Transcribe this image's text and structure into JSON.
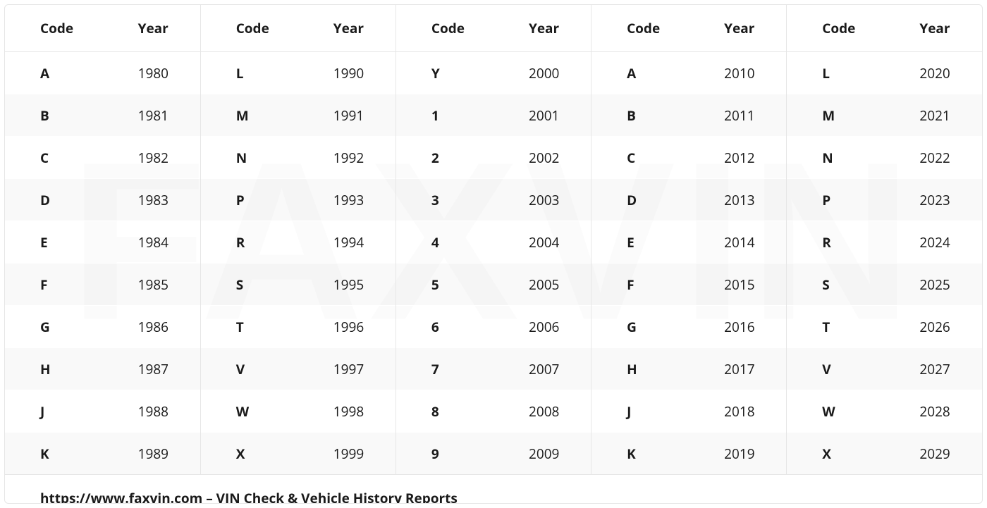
{
  "table": {
    "headers": {
      "code": "Code",
      "year": "Year"
    },
    "groups": [
      {
        "rows": [
          {
            "code": "A",
            "year": "1980"
          },
          {
            "code": "B",
            "year": "1981"
          },
          {
            "code": "C",
            "year": "1982"
          },
          {
            "code": "D",
            "year": "1983"
          },
          {
            "code": "E",
            "year": "1984"
          },
          {
            "code": "F",
            "year": "1985"
          },
          {
            "code": "G",
            "year": "1986"
          },
          {
            "code": "H",
            "year": "1987"
          },
          {
            "code": "J",
            "year": "1988"
          },
          {
            "code": "K",
            "year": "1989"
          }
        ]
      },
      {
        "rows": [
          {
            "code": "L",
            "year": "1990"
          },
          {
            "code": "M",
            "year": "1991"
          },
          {
            "code": "N",
            "year": "1992"
          },
          {
            "code": "P",
            "year": "1993"
          },
          {
            "code": "R",
            "year": "1994"
          },
          {
            "code": "S",
            "year": "1995"
          },
          {
            "code": "T",
            "year": "1996"
          },
          {
            "code": "V",
            "year": "1997"
          },
          {
            "code": "W",
            "year": "1998"
          },
          {
            "code": "X",
            "year": "1999"
          }
        ]
      },
      {
        "rows": [
          {
            "code": "Y",
            "year": "2000"
          },
          {
            "code": "1",
            "year": "2001"
          },
          {
            "code": "2",
            "year": "2002"
          },
          {
            "code": "3",
            "year": "2003"
          },
          {
            "code": "4",
            "year": "2004"
          },
          {
            "code": "5",
            "year": "2005"
          },
          {
            "code": "6",
            "year": "2006"
          },
          {
            "code": "7",
            "year": "2007"
          },
          {
            "code": "8",
            "year": "2008"
          },
          {
            "code": "9",
            "year": "2009"
          }
        ]
      },
      {
        "rows": [
          {
            "code": "A",
            "year": "2010"
          },
          {
            "code": "B",
            "year": "2011"
          },
          {
            "code": "C",
            "year": "2012"
          },
          {
            "code": "D",
            "year": "2013"
          },
          {
            "code": "E",
            "year": "2014"
          },
          {
            "code": "F",
            "year": "2015"
          },
          {
            "code": "G",
            "year": "2016"
          },
          {
            "code": "H",
            "year": "2017"
          },
          {
            "code": "J",
            "year": "2018"
          },
          {
            "code": "K",
            "year": "2019"
          }
        ]
      },
      {
        "rows": [
          {
            "code": "L",
            "year": "2020"
          },
          {
            "code": "M",
            "year": "2021"
          },
          {
            "code": "N",
            "year": "2022"
          },
          {
            "code": "P",
            "year": "2023"
          },
          {
            "code": "R",
            "year": "2024"
          },
          {
            "code": "S",
            "year": "2025"
          },
          {
            "code": "T",
            "year": "2026"
          },
          {
            "code": "V",
            "year": "2027"
          },
          {
            "code": "W",
            "year": "2028"
          },
          {
            "code": "X",
            "year": "2029"
          }
        ]
      }
    ],
    "footer": "https://www.faxvin.com – VIN Check & Vehicle History Reports",
    "watermark": "FAXVIN",
    "colors": {
      "border": "#e6e6e6",
      "text": "#1a1a1a",
      "row_alt_bg": "#f6f6f6",
      "watermark": "#f3f3f3"
    },
    "font_sizes": {
      "cell": 19,
      "watermark": 320
    }
  }
}
